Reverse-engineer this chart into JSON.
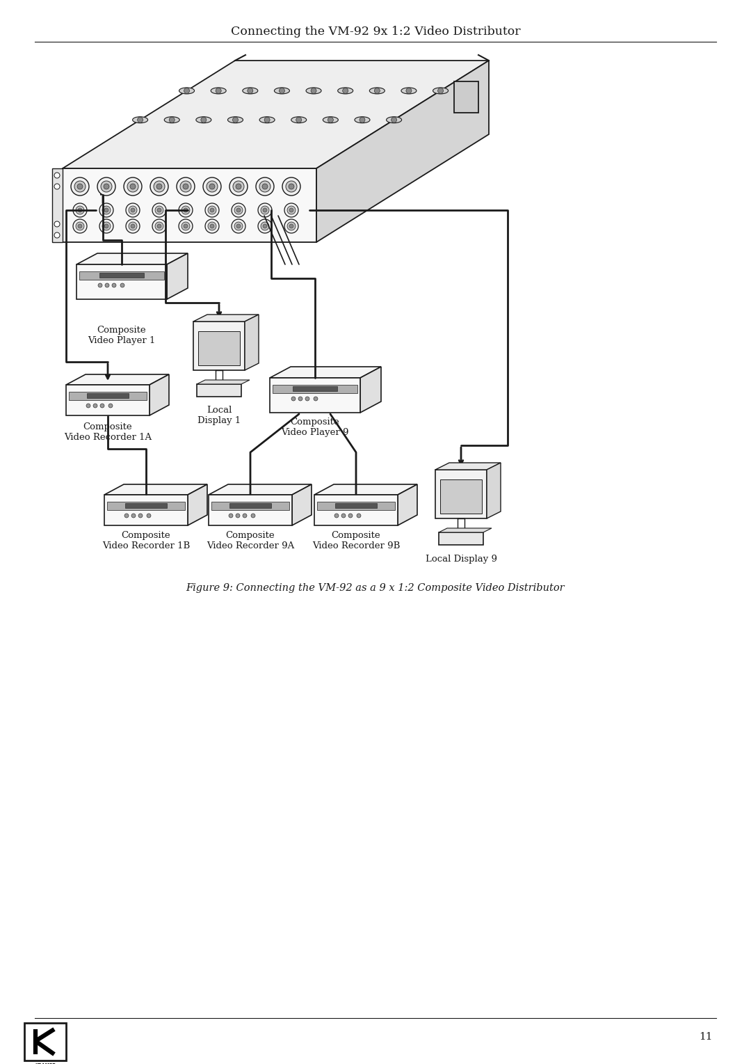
{
  "title": "Connecting the VM-92 9x 1:2 Video Distributor",
  "caption": "Figure 9: Connecting the VM-92 as a 9 x 1:2 Composite Video Distributor",
  "page_number": "11",
  "background_color": "#ffffff",
  "text_color": "#1a1a1a",
  "line_color": "#1a1a1a",
  "title_fontsize": 12.5,
  "caption_fontsize": 10.5,
  "labels": {
    "cvp1": "Composite\nVideo Player 1",
    "cvr1a": "Composite\nVideo Recorder 1A",
    "cvr1b": "Composite\nVideo Recorder 1B",
    "ld1": "Local\nDisplay 1",
    "cvp9": "Composite\nVideo Player 9",
    "cvr9a": "Composite\nVideo Recorder 9A",
    "cvr9b": "Composite\nVideo Recorder 9B",
    "ld9": "Local Display 9"
  }
}
